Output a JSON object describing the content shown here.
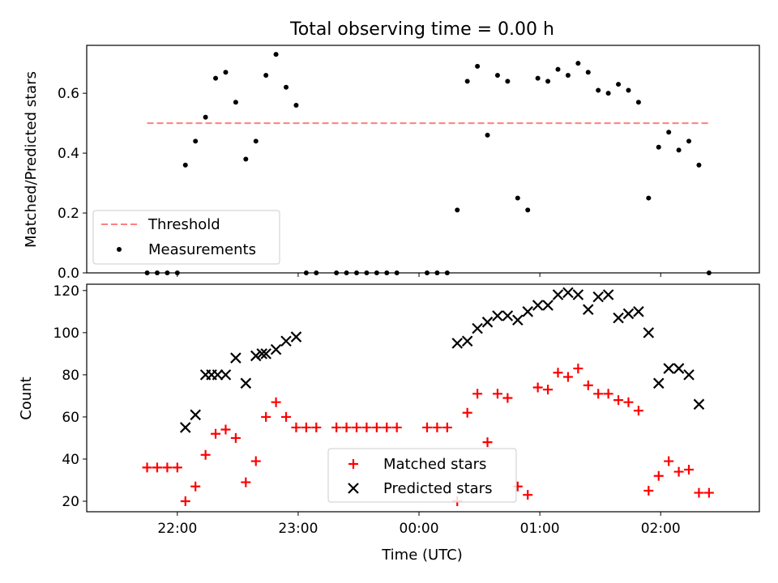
{
  "chart_data": {
    "type": "scatter",
    "title": "Total observing time = 0.00 h",
    "xlabel": "Time (UTC)",
    "x_ticks": [
      "22:00",
      "23:00",
      "00:00",
      "01:00",
      "02:00"
    ],
    "top": {
      "ylabel": "Matched/Predicted stars",
      "ylim": [
        0,
        0.76
      ],
      "y_ticks": [
        "0.0",
        "0.2",
        "0.4",
        "0.6"
      ],
      "legend_position": "lower-left",
      "threshold": {
        "name": "Threshold",
        "value": 0.5,
        "color": "#ff7f7f",
        "x_range": [
          "21:45",
          "02:25"
        ]
      },
      "series": [
        {
          "name": "Measurements",
          "color": "#000000",
          "marker": "dot",
          "points": [
            [
              "21:45",
              0.0
            ],
            [
              "21:50",
              0.0
            ],
            [
              "21:55",
              0.0
            ],
            [
              "22:00",
              0.0
            ],
            [
              "22:04",
              0.36
            ],
            [
              "22:09",
              0.44
            ],
            [
              "22:14",
              0.52
            ],
            [
              "22:19",
              0.65
            ],
            [
              "22:24",
              0.67
            ],
            [
              "22:29",
              0.57
            ],
            [
              "22:34",
              0.38
            ],
            [
              "22:39",
              0.44
            ],
            [
              "22:44",
              0.66
            ],
            [
              "22:49",
              0.73
            ],
            [
              "22:54",
              0.62
            ],
            [
              "22:59",
              0.56
            ],
            [
              "23:04",
              0.0
            ],
            [
              "23:09",
              0.0
            ],
            [
              "23:19",
              0.0
            ],
            [
              "23:24",
              0.0
            ],
            [
              "23:29",
              0.0
            ],
            [
              "23:34",
              0.0
            ],
            [
              "23:39",
              0.0
            ],
            [
              "23:44",
              0.0
            ],
            [
              "23:49",
              0.0
            ],
            [
              "00:04",
              0.0
            ],
            [
              "00:09",
              0.0
            ],
            [
              "00:14",
              0.0
            ],
            [
              "00:19",
              0.21
            ],
            [
              "00:24",
              0.64
            ],
            [
              "00:29",
              0.69
            ],
            [
              "00:34",
              0.46
            ],
            [
              "00:39",
              0.66
            ],
            [
              "00:44",
              0.64
            ],
            [
              "00:49",
              0.25
            ],
            [
              "00:54",
              0.21
            ],
            [
              "00:59",
              0.65
            ],
            [
              "01:04",
              0.64
            ],
            [
              "01:09",
              0.68
            ],
            [
              "01:14",
              0.66
            ],
            [
              "01:19",
              0.7
            ],
            [
              "01:24",
              0.67
            ],
            [
              "01:29",
              0.61
            ],
            [
              "01:34",
              0.6
            ],
            [
              "01:39",
              0.63
            ],
            [
              "01:44",
              0.61
            ],
            [
              "01:49",
              0.57
            ],
            [
              "01:54",
              0.25
            ],
            [
              "01:59",
              0.42
            ],
            [
              "02:04",
              0.47
            ],
            [
              "02:09",
              0.41
            ],
            [
              "02:14",
              0.44
            ],
            [
              "02:19",
              0.36
            ],
            [
              "02:24",
              0.0
            ]
          ]
        }
      ]
    },
    "bottom": {
      "ylabel": "Count",
      "ylim": [
        15,
        123
      ],
      "y_ticks": [
        "20",
        "40",
        "60",
        "80",
        "100",
        "120"
      ],
      "legend_position": "lower-center",
      "series": [
        {
          "name": "Matched stars",
          "color": "#ff0000",
          "marker": "plus",
          "points": [
            [
              "21:45",
              36
            ],
            [
              "21:50",
              36
            ],
            [
              "21:55",
              36
            ],
            [
              "22:00",
              36
            ],
            [
              "22:04",
              20
            ],
            [
              "22:09",
              27
            ],
            [
              "22:14",
              42
            ],
            [
              "22:19",
              52
            ],
            [
              "22:24",
              54
            ],
            [
              "22:29",
              50
            ],
            [
              "22:34",
              29
            ],
            [
              "22:39",
              39
            ],
            [
              "22:44",
              60
            ],
            [
              "22:49",
              67
            ],
            [
              "22:54",
              60
            ],
            [
              "22:59",
              55
            ],
            [
              "23:04",
              55
            ],
            [
              "23:09",
              55
            ],
            [
              "23:19",
              55
            ],
            [
              "23:24",
              55
            ],
            [
              "23:29",
              55
            ],
            [
              "23:34",
              55
            ],
            [
              "23:39",
              55
            ],
            [
              "23:44",
              55
            ],
            [
              "23:49",
              55
            ],
            [
              "00:04",
              55
            ],
            [
              "00:09",
              55
            ],
            [
              "00:14",
              55
            ],
            [
              "00:19",
              20
            ],
            [
              "00:24",
              62
            ],
            [
              "00:29",
              71
            ],
            [
              "00:34",
              48
            ],
            [
              "00:39",
              71
            ],
            [
              "00:44",
              69
            ],
            [
              "00:49",
              27
            ],
            [
              "00:54",
              23
            ],
            [
              "00:59",
              74
            ],
            [
              "01:04",
              73
            ],
            [
              "01:09",
              81
            ],
            [
              "01:14",
              79
            ],
            [
              "01:19",
              83
            ],
            [
              "01:24",
              75
            ],
            [
              "01:29",
              71
            ],
            [
              "01:34",
              71
            ],
            [
              "01:39",
              68
            ],
            [
              "01:44",
              67
            ],
            [
              "01:49",
              63
            ],
            [
              "01:54",
              25
            ],
            [
              "01:59",
              32
            ],
            [
              "02:04",
              39
            ],
            [
              "02:09",
              34
            ],
            [
              "02:14",
              35
            ],
            [
              "02:19",
              24
            ],
            [
              "02:24",
              24
            ]
          ]
        },
        {
          "name": "Predicted stars",
          "color": "#000000",
          "marker": "x",
          "points": [
            [
              "22:04",
              55
            ],
            [
              "22:09",
              61
            ],
            [
              "22:14",
              80
            ],
            [
              "22:17",
              80
            ],
            [
              "22:20",
              80
            ],
            [
              "22:24",
              80
            ],
            [
              "22:29",
              88
            ],
            [
              "22:34",
              76
            ],
            [
              "22:39",
              89
            ],
            [
              "22:42",
              90
            ],
            [
              "22:44",
              90
            ],
            [
              "22:49",
              92
            ],
            [
              "22:54",
              96
            ],
            [
              "22:59",
              98
            ],
            [
              "00:19",
              95
            ],
            [
              "00:24",
              96
            ],
            [
              "00:29",
              102
            ],
            [
              "00:34",
              105
            ],
            [
              "00:39",
              108
            ],
            [
              "00:44",
              108
            ],
            [
              "00:49",
              106
            ],
            [
              "00:54",
              110
            ],
            [
              "00:59",
              113
            ],
            [
              "01:04",
              113
            ],
            [
              "01:09",
              118
            ],
            [
              "01:14",
              119
            ],
            [
              "01:19",
              118
            ],
            [
              "01:24",
              111
            ],
            [
              "01:29",
              117
            ],
            [
              "01:34",
              118
            ],
            [
              "01:39",
              107
            ],
            [
              "01:44",
              109
            ],
            [
              "01:49",
              110
            ],
            [
              "01:54",
              100
            ],
            [
              "01:59",
              76
            ],
            [
              "02:04",
              83
            ],
            [
              "02:09",
              83
            ],
            [
              "02:14",
              80
            ],
            [
              "02:19",
              66
            ]
          ]
        }
      ]
    }
  }
}
